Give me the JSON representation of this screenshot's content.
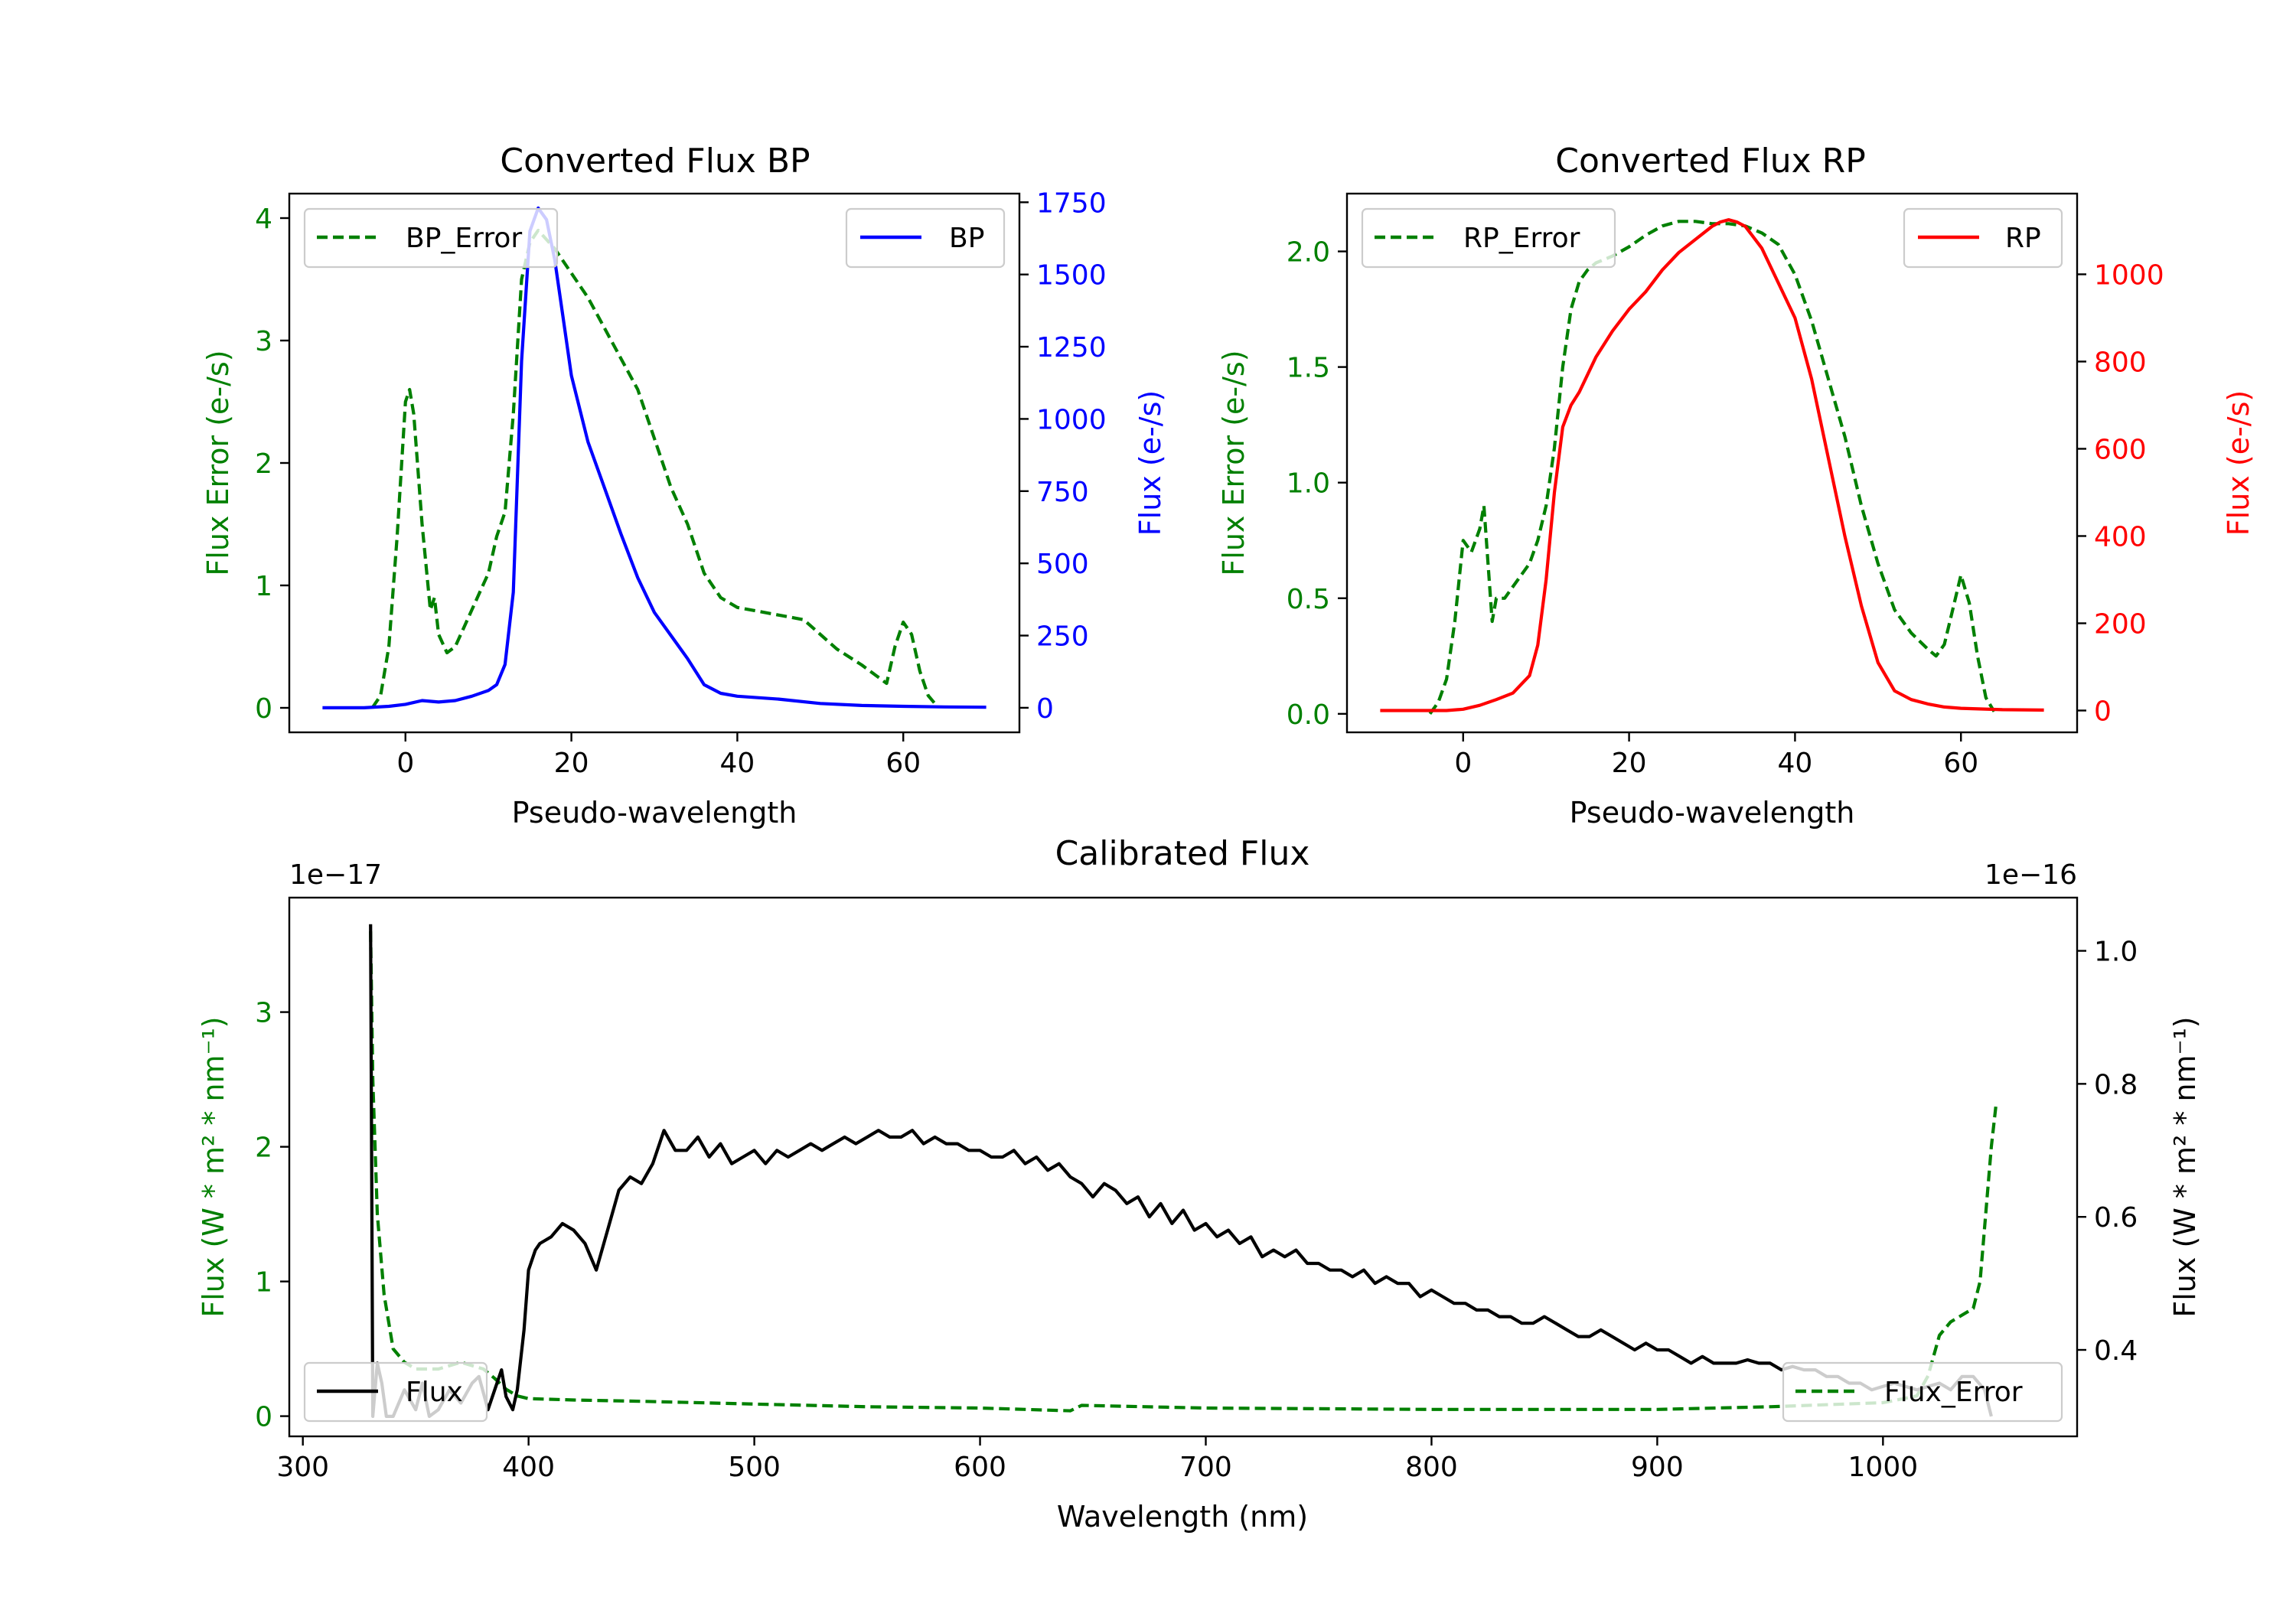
{
  "chart_data": [
    {
      "id": "bp",
      "type": "line",
      "title": "Converted Flux BP",
      "xlabel": "Pseudo-wavelength",
      "xlim": [
        -14,
        74
      ],
      "xticks": [
        0,
        20,
        40,
        60
      ],
      "left_axis": {
        "label": "Flux Error (e-/s)",
        "color": "#008000",
        "ylim": [
          -0.2,
          4.2
        ],
        "ticks": [
          0,
          1,
          2,
          3,
          4
        ]
      },
      "right_axis": {
        "label": "Flux (e-/s)",
        "color": "#0000ff",
        "ylim": [
          -85,
          1780
        ],
        "ticks": [
          0,
          250,
          500,
          750,
          1000,
          1250,
          1500,
          1750
        ]
      },
      "series": [
        {
          "name": "BP_Error",
          "axis": "left",
          "color": "#008000",
          "style": "dashed",
          "legend": "upper left",
          "x": [
            -4,
            -3,
            -2,
            -1,
            0,
            0.5,
            1,
            2,
            3,
            3.5,
            4,
            5,
            6,
            7,
            8,
            9,
            10,
            11,
            12,
            13,
            14,
            15,
            16,
            18,
            20,
            22,
            24,
            26,
            28,
            30,
            32,
            34,
            36,
            38,
            40,
            44,
            48,
            50,
            52,
            55,
            58,
            59,
            60,
            61,
            62,
            63,
            64
          ],
          "y": [
            0,
            0.1,
            0.5,
            1.4,
            2.5,
            2.6,
            2.4,
            1.5,
            0.8,
            0.9,
            0.6,
            0.45,
            0.5,
            0.65,
            0.8,
            0.95,
            1.1,
            1.4,
            1.6,
            2.4,
            3.5,
            3.8,
            3.9,
            3.75,
            3.55,
            3.35,
            3.1,
            2.85,
            2.6,
            2.2,
            1.8,
            1.5,
            1.1,
            0.9,
            0.82,
            0.77,
            0.72,
            0.6,
            0.48,
            0.35,
            0.2,
            0.5,
            0.7,
            0.6,
            0.3,
            0.1,
            0.02
          ]
        },
        {
          "name": "BP",
          "axis": "right",
          "color": "#0000ff",
          "style": "solid",
          "legend": "upper right",
          "x": [
            -10,
            -5,
            -2,
            0,
            2,
            4,
            6,
            8,
            10,
            11,
            12,
            13,
            14,
            15,
            16,
            17,
            18,
            19,
            20,
            22,
            24,
            26,
            28,
            30,
            32,
            34,
            36,
            38,
            40,
            45,
            50,
            55,
            60,
            65,
            70
          ],
          "y": [
            0,
            0,
            5,
            12,
            25,
            20,
            25,
            40,
            60,
            80,
            150,
            400,
            1200,
            1650,
            1730,
            1690,
            1550,
            1350,
            1150,
            920,
            760,
            600,
            450,
            330,
            250,
            170,
            80,
            50,
            40,
            30,
            15,
            8,
            5,
            3,
            2
          ]
        }
      ]
    },
    {
      "id": "rp",
      "type": "line",
      "title": "Converted Flux RP",
      "xlabel": "Pseudo-wavelength",
      "xlim": [
        -14,
        74
      ],
      "xticks": [
        0,
        20,
        40,
        60
      ],
      "left_axis": {
        "label": "Flux Error (e-/s)",
        "color": "#008000",
        "ylim": [
          -0.08,
          2.25
        ],
        "ticks": [
          0.0,
          0.5,
          1.0,
          1.5,
          2.0
        ]
      },
      "right_axis": {
        "label": "Flux (e-/s)",
        "color": "#ff0000",
        "ylim": [
          -50,
          1185
        ],
        "ticks": [
          0,
          200,
          400,
          600,
          800,
          1000
        ]
      },
      "series": [
        {
          "name": "RP_Error",
          "axis": "left",
          "color": "#008000",
          "style": "dashed",
          "legend": "upper left",
          "x": [
            -4,
            -3,
            -2,
            -1,
            0,
            1,
            2,
            2.5,
            3,
            3.5,
            4,
            5,
            6,
            7,
            8,
            9,
            10,
            11,
            12,
            13,
            14,
            15,
            16,
            18,
            20,
            22,
            24,
            26,
            28,
            30,
            32,
            34,
            36,
            38,
            40,
            42,
            44,
            46,
            48,
            50,
            52,
            54,
            56,
            57,
            58,
            59,
            60,
            61,
            62,
            63,
            64
          ],
          "y": [
            0,
            0.05,
            0.15,
            0.4,
            0.75,
            0.7,
            0.8,
            0.9,
            0.65,
            0.4,
            0.5,
            0.5,
            0.55,
            0.6,
            0.65,
            0.75,
            0.9,
            1.15,
            1.5,
            1.75,
            1.87,
            1.92,
            1.95,
            1.98,
            2.02,
            2.07,
            2.11,
            2.13,
            2.13,
            2.12,
            2.12,
            2.11,
            2.08,
            2.03,
            1.9,
            1.7,
            1.45,
            1.2,
            0.9,
            0.65,
            0.45,
            0.35,
            0.28,
            0.25,
            0.3,
            0.45,
            0.6,
            0.48,
            0.25,
            0.07,
            0.01
          ]
        },
        {
          "name": "RP",
          "axis": "right",
          "color": "#ff0000",
          "style": "solid",
          "legend": "upper right",
          "x": [
            -10,
            -5,
            -2,
            0,
            2,
            4,
            6,
            8,
            9,
            10,
            11,
            12,
            13,
            14,
            16,
            18,
            20,
            22,
            24,
            26,
            28,
            30,
            31,
            32,
            33,
            34,
            36,
            38,
            40,
            42,
            44,
            46,
            48,
            50,
            52,
            54,
            56,
            58,
            60,
            65,
            70
          ],
          "y": [
            0,
            0,
            0,
            3,
            12,
            25,
            40,
            80,
            150,
            300,
            500,
            650,
            700,
            730,
            810,
            870,
            920,
            960,
            1010,
            1050,
            1080,
            1110,
            1120,
            1125,
            1120,
            1110,
            1060,
            980,
            900,
            760,
            580,
            400,
            240,
            110,
            45,
            25,
            15,
            8,
            5,
            2,
            1
          ]
        }
      ]
    },
    {
      "id": "cal",
      "type": "line",
      "title": "Calibrated Flux",
      "xlabel": "Wavelength (nm)",
      "xlim": [
        294,
        1086
      ],
      "xticks": [
        300,
        400,
        500,
        600,
        700,
        800,
        900,
        1000
      ],
      "left_axis": {
        "label": "Flux (W * m² * nm⁻¹)",
        "color": "#008000",
        "ylim": [
          -0.15,
          3.85
        ],
        "ticks": [
          0,
          1,
          2,
          3
        ],
        "offset": "1e−17"
      },
      "right_axis": {
        "label": "Flux (W * m² * nm⁻¹)",
        "color": "#000000",
        "ylim": [
          0.27,
          1.08
        ],
        "ticks": [
          0.4,
          0.6,
          0.8,
          1.0
        ],
        "offset": "1e−16"
      },
      "series": [
        {
          "name": "Flux_Error",
          "axis": "left",
          "color": "#008000",
          "style": "dashed",
          "legend": "lower right",
          "x": [
            330,
            331,
            333,
            336,
            340,
            345,
            350,
            360,
            370,
            380,
            385,
            390,
            395,
            400,
            420,
            450,
            500,
            550,
            600,
            640,
            645,
            700,
            800,
            900,
            950,
            1000,
            1015,
            1020,
            1025,
            1030,
            1035,
            1040,
            1043,
            1045,
            1048,
            1050
          ],
          "y": [
            3.6,
            2.5,
            1.5,
            0.9,
            0.5,
            0.4,
            0.35,
            0.35,
            0.4,
            0.35,
            0.28,
            0.2,
            0.15,
            0.13,
            0.12,
            0.11,
            0.09,
            0.07,
            0.06,
            0.04,
            0.08,
            0.06,
            0.05,
            0.05,
            0.07,
            0.1,
            0.15,
            0.3,
            0.6,
            0.7,
            0.75,
            0.8,
            1.0,
            1.4,
            2.0,
            2.3
          ]
        },
        {
          "name": "Flux",
          "axis": "right",
          "color": "#000000",
          "style": "solid",
          "legend": "lower left",
          "x": [
            330,
            331,
            333,
            335,
            337,
            340,
            345,
            350,
            353,
            356,
            360,
            365,
            370,
            375,
            378,
            382,
            385,
            388,
            390,
            393,
            395,
            398,
            400,
            403,
            405,
            410,
            415,
            420,
            425,
            430,
            435,
            440,
            445,
            450,
            455,
            460,
            465,
            470,
            475,
            480,
            485,
            490,
            495,
            500,
            505,
            510,
            515,
            520,
            525,
            530,
            535,
            540,
            545,
            550,
            555,
            560,
            565,
            570,
            575,
            580,
            585,
            590,
            595,
            600,
            605,
            610,
            615,
            620,
            625,
            630,
            635,
            640,
            645,
            650,
            655,
            660,
            665,
            670,
            675,
            680,
            685,
            690,
            695,
            700,
            705,
            710,
            715,
            720,
            725,
            730,
            735,
            740,
            745,
            750,
            755,
            760,
            765,
            770,
            775,
            780,
            785,
            790,
            795,
            800,
            805,
            810,
            815,
            820,
            825,
            830,
            835,
            840,
            845,
            850,
            855,
            860,
            865,
            870,
            875,
            880,
            885,
            890,
            895,
            900,
            905,
            910,
            915,
            920,
            925,
            930,
            935,
            940,
            945,
            950,
            955,
            960,
            965,
            970,
            975,
            980,
            985,
            990,
            995,
            1000,
            1005,
            1010,
            1015,
            1020,
            1025,
            1030,
            1035,
            1040,
            1045,
            1048
          ],
          "y": [
            1.04,
            0.3,
            0.38,
            0.35,
            0.3,
            0.3,
            0.34,
            0.31,
            0.35,
            0.3,
            0.31,
            0.34,
            0.32,
            0.35,
            0.36,
            0.31,
            0.34,
            0.37,
            0.33,
            0.31,
            0.34,
            0.43,
            0.52,
            0.55,
            0.56,
            0.57,
            0.59,
            0.58,
            0.56,
            0.52,
            0.58,
            0.64,
            0.66,
            0.65,
            0.68,
            0.73,
            0.7,
            0.7,
            0.72,
            0.69,
            0.71,
            0.68,
            0.69,
            0.7,
            0.68,
            0.7,
            0.69,
            0.7,
            0.71,
            0.7,
            0.71,
            0.72,
            0.71,
            0.72,
            0.73,
            0.72,
            0.72,
            0.73,
            0.71,
            0.72,
            0.71,
            0.71,
            0.7,
            0.7,
            0.69,
            0.69,
            0.7,
            0.68,
            0.69,
            0.67,
            0.68,
            0.66,
            0.65,
            0.63,
            0.65,
            0.64,
            0.62,
            0.63,
            0.6,
            0.62,
            0.59,
            0.61,
            0.58,
            0.59,
            0.57,
            0.58,
            0.56,
            0.57,
            0.54,
            0.55,
            0.54,
            0.55,
            0.53,
            0.53,
            0.52,
            0.52,
            0.51,
            0.52,
            0.5,
            0.51,
            0.5,
            0.5,
            0.48,
            0.49,
            0.48,
            0.47,
            0.47,
            0.46,
            0.46,
            0.45,
            0.45,
            0.44,
            0.44,
            0.45,
            0.44,
            0.43,
            0.42,
            0.42,
            0.43,
            0.42,
            0.41,
            0.4,
            0.41,
            0.4,
            0.4,
            0.39,
            0.38,
            0.39,
            0.38,
            0.38,
            0.38,
            0.385,
            0.38,
            0.38,
            0.37,
            0.375,
            0.37,
            0.37,
            0.36,
            0.36,
            0.35,
            0.35,
            0.34,
            0.345,
            0.35,
            0.345,
            0.34,
            0.345,
            0.35,
            0.34,
            0.36,
            0.36,
            0.34,
            0.3
          ]
        }
      ]
    }
  ]
}
